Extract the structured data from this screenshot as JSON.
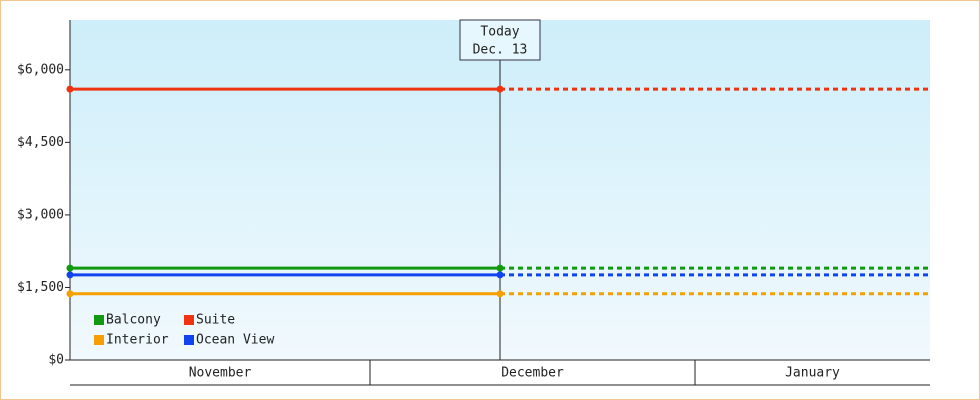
{
  "chart_data": {
    "type": "line",
    "categories": [
      "November",
      "December",
      "January"
    ],
    "annotation": [
      "Today",
      "Dec. 13"
    ],
    "series": [
      {
        "name": "Balcony",
        "color": "#119911",
        "value": 1900
      },
      {
        "name": "Suite",
        "color": "#ee3311",
        "value": 5600
      },
      {
        "name": "Interior",
        "color": "#f5a000",
        "value": 1370
      },
      {
        "name": "Ocean View",
        "color": "#1144ee",
        "value": 1760
      }
    ],
    "ylim": [
      0,
      7030
    ],
    "yticks": [
      {
        "value": 0,
        "label": "$0"
      },
      {
        "value": 1500,
        "label": "$1,500"
      },
      {
        "value": 3000,
        "label": "$3,000"
      },
      {
        "value": 4500,
        "label": "$4,500"
      },
      {
        "value": 6000,
        "label": "$6,000"
      }
    ]
  }
}
